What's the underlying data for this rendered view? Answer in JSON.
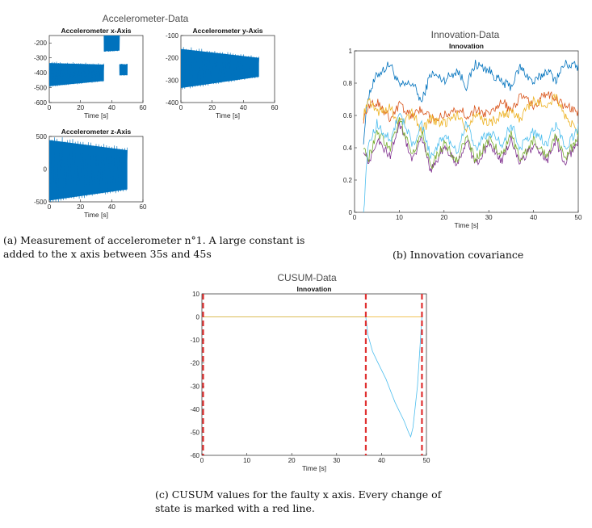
{
  "figure_a": {
    "window_title": "Accelerometer-Data",
    "caption": "(a) Measurement of accelerometer n°1. A large constant is added to the x axis between 35s and 45s"
  },
  "figure_b": {
    "window_title": "Innovation-Data",
    "caption": "(b) Innovation covariance"
  },
  "figure_c": {
    "window_title": "CUSUM-Data",
    "caption": "(c) CUSUM values for the faulty x axis. Every change of state is marked with a red line."
  },
  "colors": {
    "matlab_blue": "#0072BD",
    "matlab_orange": "#D95319",
    "matlab_yellow": "#EDB120",
    "matlab_purple": "#7E2F8E",
    "matlab_green": "#77AC30",
    "matlab_cyan": "#4DBEEE",
    "red_marker": "#E03030"
  },
  "chart_data": [
    {
      "id": "acc_x",
      "type": "line",
      "title": "Accelerometer x-Axis",
      "xlabel": "Time [s]",
      "ylabel": "",
      "xlim": [
        0,
        60
      ],
      "ylim": [
        -600,
        -150
      ],
      "xticks": [
        0,
        20,
        40,
        60
      ],
      "yticks": [
        -600,
        -500,
        -400,
        -300,
        -200
      ],
      "grid": false,
      "segments": [
        {
          "t0": 0,
          "t1": 35,
          "low0": -490,
          "high0": -335,
          "low1": -455,
          "high1": -345
        },
        {
          "t0": 35,
          "t1": 45,
          "low0": -255,
          "high0": -150,
          "low1": -250,
          "high1": -150
        },
        {
          "t0": 45,
          "t1": 50,
          "low0": -415,
          "high0": -345,
          "low1": -415,
          "high1": -345
        }
      ]
    },
    {
      "id": "acc_y",
      "type": "line",
      "title": "Accelerometer y-Axis",
      "xlabel": "Time [s]",
      "ylabel": "",
      "xlim": [
        0,
        60
      ],
      "ylim": [
        -400,
        -100
      ],
      "xticks": [
        0,
        20,
        40,
        60
      ],
      "yticks": [
        -400,
        -300,
        -200,
        -100
      ],
      "grid": false,
      "segments": [
        {
          "t0": 0,
          "t1": 50,
          "low0": -335,
          "high0": -160,
          "low1": -285,
          "high1": -200
        }
      ]
    },
    {
      "id": "acc_z",
      "type": "line",
      "title": "Accelerometer z-Axis",
      "xlabel": "Time [s]",
      "ylabel": "",
      "xlim": [
        0,
        60
      ],
      "ylim": [
        -500,
        500
      ],
      "xticks": [
        0,
        20,
        40,
        60
      ],
      "yticks": [
        -500,
        0,
        500
      ],
      "grid": false,
      "segments": [
        {
          "t0": 0,
          "t1": 50,
          "low0": -480,
          "high0": 445,
          "low1": -310,
          "high1": 290
        }
      ]
    },
    {
      "id": "innovation_cov",
      "type": "line",
      "title": "Innovation",
      "xlabel": "Time [s]",
      "ylabel": "",
      "xlim": [
        0,
        50
      ],
      "ylim": [
        0,
        1
      ],
      "xticks": [
        0,
        10,
        20,
        30,
        40,
        50
      ],
      "yticks": [
        0,
        0.2,
        0.4,
        0.6,
        0.8,
        1
      ],
      "grid": false,
      "x": [
        2,
        3,
        5,
        8,
        10,
        13,
        15,
        17,
        20,
        23,
        25,
        27,
        30,
        33,
        35,
        37,
        40,
        43,
        45,
        47,
        50
      ],
      "series": [
        {
          "color": "#0072BD",
          "values": [
            0.45,
            0.72,
            0.85,
            0.92,
            0.78,
            0.8,
            0.68,
            0.86,
            0.82,
            0.88,
            0.78,
            0.92,
            0.88,
            0.8,
            0.78,
            0.9,
            0.8,
            0.88,
            0.82,
            0.92,
            0.9
          ]
        },
        {
          "color": "#D95319",
          "values": [
            0.58,
            0.65,
            0.68,
            0.58,
            0.67,
            0.6,
            0.64,
            0.58,
            0.6,
            0.65,
            0.6,
            0.64,
            0.6,
            0.7,
            0.62,
            0.72,
            0.66,
            0.74,
            0.7,
            0.66,
            0.62
          ]
        },
        {
          "color": "#EDB120",
          "values": [
            0.6,
            0.7,
            0.62,
            0.65,
            0.55,
            0.62,
            0.5,
            0.58,
            0.55,
            0.6,
            0.52,
            0.6,
            0.55,
            0.6,
            0.62,
            0.58,
            0.7,
            0.65,
            0.72,
            0.6,
            0.5
          ]
        },
        {
          "color": "#7E2F8E",
          "values": [
            0.4,
            0.3,
            0.45,
            0.35,
            0.55,
            0.32,
            0.48,
            0.25,
            0.4,
            0.3,
            0.45,
            0.3,
            0.42,
            0.32,
            0.45,
            0.3,
            0.42,
            0.32,
            0.45,
            0.3,
            0.45
          ]
        },
        {
          "color": "#77AC30",
          "values": [
            0.42,
            0.32,
            0.5,
            0.4,
            0.58,
            0.35,
            0.5,
            0.28,
            0.42,
            0.32,
            0.48,
            0.32,
            0.45,
            0.35,
            0.48,
            0.32,
            0.45,
            0.34,
            0.48,
            0.32,
            0.48
          ]
        },
        {
          "color": "#4DBEEE",
          "values": [
            0.0,
            0.4,
            0.55,
            0.45,
            0.62,
            0.42,
            0.55,
            0.35,
            0.48,
            0.38,
            0.55,
            0.4,
            0.5,
            0.42,
            0.55,
            0.4,
            0.5,
            0.42,
            0.55,
            0.4,
            0.52
          ]
        }
      ]
    },
    {
      "id": "cusum",
      "type": "line",
      "title": "Innovation",
      "xlabel": "Time [s]",
      "ylabel": "",
      "xlim": [
        0,
        50
      ],
      "ylim": [
        -60,
        10
      ],
      "xticks": [
        0,
        10,
        20,
        30,
        40,
        50
      ],
      "yticks": [
        -60,
        -50,
        -40,
        -30,
        -20,
        -10,
        0,
        10
      ],
      "grid": false,
      "series": [
        {
          "color": "#4DBEEE",
          "x": [
            0,
            36.5,
            37,
            38,
            39,
            40,
            41,
            42,
            43,
            44,
            45,
            46,
            46.5,
            47,
            48,
            49
          ],
          "values": [
            0,
            0,
            -8,
            -15,
            -19,
            -23,
            -27,
            -32,
            -37,
            -41,
            -45,
            -50,
            -52,
            -48,
            -30,
            0
          ]
        },
        {
          "color": "#EDB120",
          "x": [
            0,
            36.5,
            49
          ],
          "values": [
            0,
            0,
            0
          ]
        }
      ],
      "change_markers_x": [
        0,
        36.5,
        49
      ]
    }
  ]
}
